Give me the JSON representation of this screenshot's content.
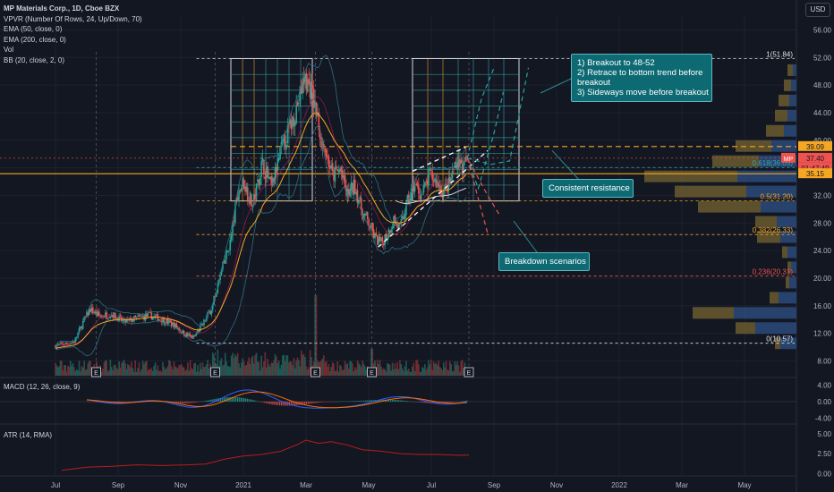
{
  "header": {
    "title": "MP Materials Corp., 1D, Cboe BZX",
    "indicators": [
      "VPVR (Number Of Rows, 24, Up/Down, 70)",
      "EMA (50, close, 0)",
      "EMA (200, close, 0)",
      "Vol",
      "BB (20, close, 2, 0)"
    ],
    "currency_button": "USD"
  },
  "colors": {
    "background": "#131722",
    "up": "#26a69a",
    "down": "#ef5350",
    "grid": "#1e222d",
    "accent_orange": "#f5a623",
    "callout": "#0d6a73",
    "fib_dashed": "#e0e0e0"
  },
  "chart_data": [
    {
      "type": "candlestick",
      "title": "MP Materials Corp., 1D, Cboe BZX",
      "y_ticks": [
        8,
        12,
        16,
        20,
        24,
        28,
        32,
        36,
        40,
        44,
        48,
        52,
        56
      ],
      "y_tick_labels": [
        "8.00",
        "12.00",
        "16.00",
        "20.00",
        "24.00",
        "28.00",
        "32.00",
        "36.00",
        "40.00",
        "44.00",
        "48.00",
        "52.00",
        "56.00"
      ],
      "ylim": [
        5.6,
        58
      ],
      "x_tick_labels": [
        "Jul",
        "Sep",
        "Nov",
        "2021",
        "Mar",
        "May",
        "Jul",
        "Sep",
        "Nov",
        "2022",
        "Mar",
        "May"
      ],
      "x_tick_months": [
        0,
        2,
        4,
        6,
        8,
        10,
        12,
        14,
        16,
        18,
        20,
        22
      ],
      "price_path": [
        [
          0,
          10.2
        ],
        [
          0.6,
          10.8
        ],
        [
          0.9,
          13.8
        ],
        [
          1.1,
          15.5
        ],
        [
          1.4,
          14.5
        ],
        [
          1.8,
          14.8
        ],
        [
          2.2,
          13.6
        ],
        [
          2.6,
          14.2
        ],
        [
          3.0,
          14.6
        ],
        [
          3.4,
          14.0
        ],
        [
          3.8,
          13.2
        ],
        [
          4.1,
          12.0
        ],
        [
          4.4,
          11.3
        ],
        [
          4.7,
          13.3
        ],
        [
          5.0,
          15.8
        ],
        [
          5.3,
          21.0
        ],
        [
          5.6,
          25.5
        ],
        [
          5.8,
          32.0
        ],
        [
          6.0,
          34.0
        ],
        [
          6.3,
          30.5
        ],
        [
          6.6,
          36.8
        ],
        [
          6.9,
          33.0
        ],
        [
          7.2,
          38.5
        ],
        [
          7.5,
          42.0
        ],
        [
          7.75,
          45.5
        ],
        [
          7.95,
          49.0
        ],
        [
          8.15,
          47.5
        ],
        [
          8.35,
          43.5
        ],
        [
          8.5,
          40.0
        ],
        [
          8.65,
          38.0
        ],
        [
          8.85,
          34.8
        ],
        [
          9.1,
          35.8
        ],
        [
          9.3,
          32.0
        ],
        [
          9.55,
          33.5
        ],
        [
          9.8,
          29.5
        ],
        [
          10.0,
          28.0
        ],
        [
          10.2,
          25.8
        ],
        [
          10.4,
          25.0
        ],
        [
          10.6,
          26.5
        ],
        [
          10.8,
          28.5
        ],
        [
          11.0,
          27.0
        ],
        [
          11.2,
          30.5
        ],
        [
          11.45,
          33.5
        ],
        [
          11.7,
          32.0
        ],
        [
          11.95,
          35.0
        ],
        [
          12.15,
          34.0
        ],
        [
          12.4,
          32.5
        ],
        [
          12.6,
          33.8
        ],
        [
          12.8,
          37.4
        ],
        [
          13.0,
          36.0
        ],
        [
          13.15,
          37.4
        ]
      ],
      "levels": [
        {
          "label": "1(51.84)",
          "value": 51.84
        },
        {
          "label": "0.618(36.05)",
          "value": 36.05
        },
        {
          "label": "0.5(31.20)",
          "value": 31.2
        },
        {
          "label": "0.382(26.33)",
          "value": 26.33
        },
        {
          "label": "0.236(20.31)",
          "value": 20.31
        },
        {
          "label": "0(10.57)",
          "value": 10.57
        }
      ],
      "resistance": 39.09,
      "support": 35.15,
      "price_labels": [
        {
          "text": "39.09",
          "value": 39.09,
          "color": "#f5a623"
        },
        {
          "text": "37.40",
          "value": 37.4,
          "color": "#ef5350"
        },
        {
          "text": "01:47:49",
          "value": 36.5,
          "color": "#ef5350"
        },
        {
          "text": "35.15",
          "value": 35.15,
          "color": "#f5a623"
        }
      ],
      "symbol_tag": "MP",
      "volume_profile": [
        {
          "price": 10.5,
          "up": 18,
          "down": 6
        },
        {
          "price": 12.7,
          "up": 46,
          "down": 22
        },
        {
          "price": 14.9,
          "up": 70,
          "down": 46
        },
        {
          "price": 17.1,
          "up": 20,
          "down": 10
        },
        {
          "price": 19.3,
          "up": 8,
          "down": 4
        },
        {
          "price": 21.5,
          "up": 6,
          "down": 4
        },
        {
          "price": 23.7,
          "up": 10,
          "down": 6
        },
        {
          "price": 25.9,
          "up": 18,
          "down": 26
        },
        {
          "price": 28.1,
          "up": 22,
          "down": 24
        },
        {
          "price": 30.3,
          "up": 40,
          "down": 70
        },
        {
          "price": 32.5,
          "up": 56,
          "down": 80
        },
        {
          "price": 34.7,
          "up": 66,
          "down": 104
        },
        {
          "price": 36.9,
          "up": 42,
          "down": 52
        },
        {
          "price": 39.1,
          "up": 28,
          "down": 40
        },
        {
          "price": 41.3,
          "up": 14,
          "down": 20
        },
        {
          "price": 43.5,
          "up": 10,
          "down": 14
        },
        {
          "price": 45.7,
          "up": 8,
          "down": 12
        },
        {
          "price": 47.9,
          "up": 6,
          "down": 8
        },
        {
          "price": 50.1,
          "up": 4,
          "down": 6
        }
      ],
      "earnings_markers": [
        "E",
        "E",
        "E",
        "E",
        "E"
      ],
      "earnings_months": [
        1.3,
        5.1,
        8.3,
        10.1,
        13.2
      ]
    },
    {
      "type": "line",
      "title": "MACD (12, 26, close, 9)",
      "y_tick_labels": [
        "4.00",
        "0.00",
        "-4.00"
      ],
      "y_ticks": [
        4,
        0,
        -4
      ],
      "ylim": [
        -5,
        5.4
      ]
    },
    {
      "type": "line",
      "title": "ATR (14, RMA)",
      "y_tick_labels": [
        "5.00",
        "2.50",
        "0.00"
      ],
      "y_ticks": [
        5,
        2.5,
        0
      ],
      "ylim": [
        -0.3,
        6
      ],
      "atr_path": [
        [
          0.2,
          0.4
        ],
        [
          1.0,
          0.8
        ],
        [
          1.8,
          0.9
        ],
        [
          2.6,
          1.1
        ],
        [
          3.4,
          1.0
        ],
        [
          4.2,
          1.1
        ],
        [
          4.8,
          1.2
        ],
        [
          5.4,
          1.8
        ],
        [
          6.0,
          2.2
        ],
        [
          6.6,
          2.4
        ],
        [
          7.2,
          2.8
        ],
        [
          7.7,
          3.6
        ],
        [
          8.0,
          4.2
        ],
        [
          8.4,
          3.8
        ],
        [
          8.8,
          4.0
        ],
        [
          9.3,
          3.6
        ],
        [
          9.8,
          3.0
        ],
        [
          10.4,
          2.8
        ],
        [
          11.0,
          2.5
        ],
        [
          11.6,
          2.4
        ],
        [
          12.2,
          2.4
        ],
        [
          12.8,
          2.3
        ],
        [
          13.2,
          2.3
        ]
      ]
    }
  ],
  "annotations": {
    "scenario_box": [
      "1) Breakout to 48-52",
      "2) Retrace to bottom trend before breakout",
      "3) Sideways move before breakout"
    ],
    "resistance_label": "Consistent resistance",
    "breakdown_label": "Breakdown scenarios"
  }
}
